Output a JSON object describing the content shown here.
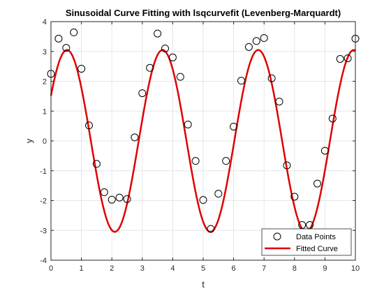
{
  "chart_data": {
    "type": "scatter",
    "title": "Sinusoidal Curve Fitting with lsqcurvefit (Levenberg-Marquardt)",
    "xlabel": "t",
    "ylabel": "y",
    "xlim": [
      0,
      10
    ],
    "ylim": [
      -4,
      4
    ],
    "x_ticks": [
      "0",
      "1",
      "2",
      "3",
      "4",
      "5",
      "6",
      "7",
      "8",
      "9",
      "10"
    ],
    "y_ticks": [
      "-4",
      "-3",
      "-2",
      "-1",
      "0",
      "1",
      "2",
      "3",
      "4"
    ],
    "grid": true,
    "legend_location": "bottom-right",
    "series": [
      {
        "name": "Data Points",
        "kind": "markers",
        "marker": "open-circle",
        "color": "#000000",
        "x": [
          0.0,
          0.25,
          0.5,
          0.75,
          1.0,
          1.25,
          1.5,
          1.75,
          2.0,
          2.25,
          2.5,
          2.75,
          3.0,
          3.25,
          3.5,
          3.75,
          4.0,
          4.25,
          4.5,
          4.75,
          5.0,
          5.25,
          5.5,
          5.75,
          6.0,
          6.25,
          6.5,
          6.75,
          7.0,
          7.25,
          7.5,
          7.75,
          8.0,
          8.25,
          8.5,
          8.75,
          9.0,
          9.25,
          9.5,
          9.75,
          10.0
        ],
        "y": [
          2.25,
          3.43,
          3.12,
          3.64,
          2.42,
          0.52,
          -0.77,
          -1.72,
          -1.97,
          -1.9,
          -1.95,
          0.12,
          1.6,
          2.45,
          3.6,
          3.1,
          2.8,
          2.15,
          0.55,
          -0.67,
          -1.98,
          -2.95,
          -1.77,
          -0.67,
          0.48,
          2.02,
          3.15,
          3.35,
          3.45,
          2.1,
          1.32,
          -0.82,
          -1.87,
          -2.82,
          -2.82,
          -1.43,
          -0.33,
          0.75,
          2.75,
          2.77,
          3.43
        ]
      },
      {
        "name": "Fitted Curve",
        "kind": "line",
        "color": "#e00000",
        "model": "y = A*sin(w*t + phi)",
        "params": {
          "A": 3.05,
          "w": 2.0,
          "phi": 0.52
        },
        "samples": 401
      }
    ]
  }
}
